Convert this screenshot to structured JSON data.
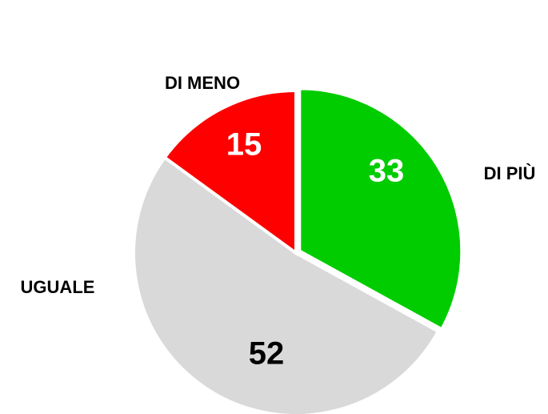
{
  "chart_data": {
    "type": "pie",
    "categories": [
      "DI PIÙ",
      "UGUALE",
      "DI MENO"
    ],
    "values": [
      33,
      52,
      15
    ],
    "colors": [
      "#00cc00",
      "#d9d9d9",
      "#ff0000"
    ],
    "value_label_colors": [
      "#ffffff",
      "#000000",
      "#ffffff"
    ]
  }
}
